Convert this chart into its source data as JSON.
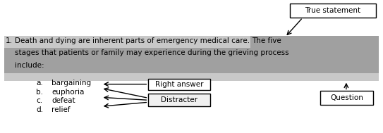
{
  "fig_width": 5.43,
  "fig_height": 1.89,
  "dpi": 100,
  "background_color": "#ffffff",
  "question_number": "1.",
  "q_line1": "Death and dying are inherent parts of emergency medical care.",
  "q_line1_cont": " The five",
  "q_line2": "stages that patients or family may experience during the grieving process",
  "q_line3": "include:",
  "light_gray": "#c8c8c8",
  "dark_gray": "#a0a0a0",
  "choices": [
    "a.",
    "b.",
    "c.",
    "d."
  ],
  "choice_labels": [
    "bargaining",
    "euphoria",
    "defeat",
    "relief"
  ],
  "box_true_statement": "True statement",
  "box_right_answer": "Right answer",
  "box_distracter": "Distracter",
  "box_question": "Question",
  "font_size": 7.5,
  "font_family": "DejaVu Sans"
}
